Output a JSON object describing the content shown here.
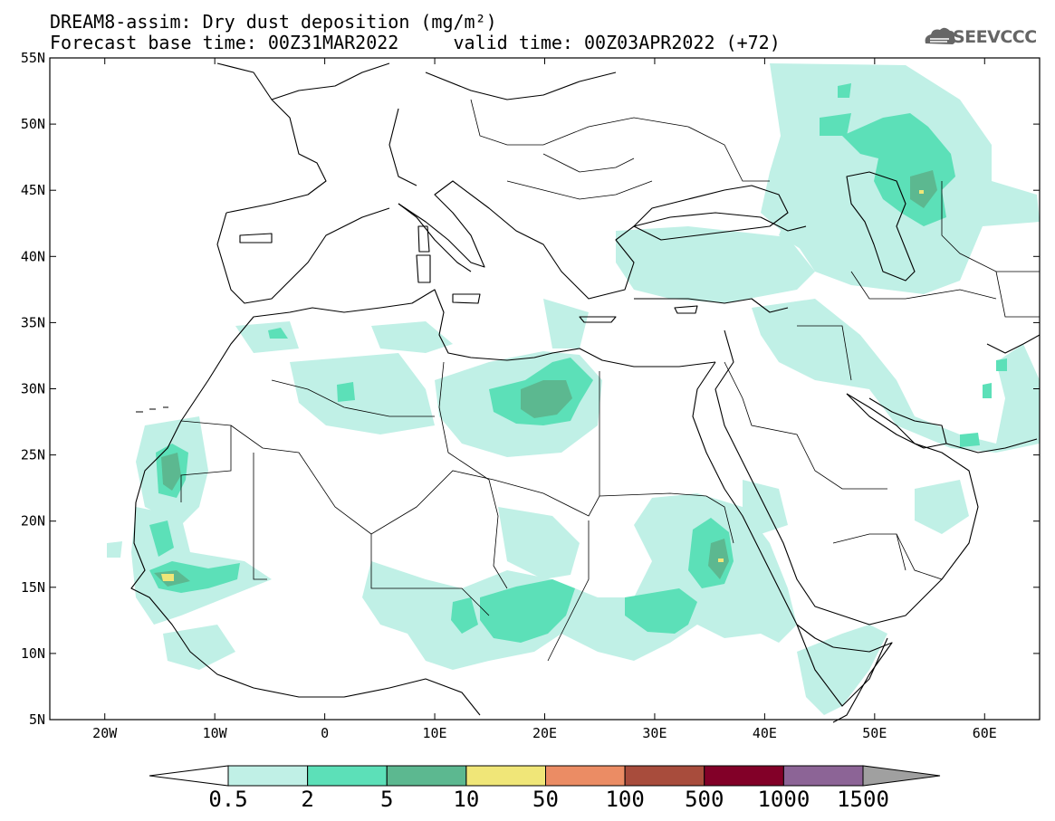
{
  "title": {
    "line1": "DREAM8-assim: Dry dust deposition (mg/m²)",
    "line2": "Forecast base time: 00Z31MAR2022     valid time: 00Z03APR2022 (+72)"
  },
  "logo": {
    "text": "SEEVCCC",
    "icon": "cloud-icon"
  },
  "map": {
    "lon_range": [
      -25,
      65
    ],
    "lat_range": [
      5,
      55
    ],
    "lat_labels": [
      "55N",
      "50N",
      "45N",
      "40N",
      "35N",
      "30N",
      "25N",
      "20N",
      "15N",
      "10N",
      "5N"
    ],
    "lon_labels": [
      "20W",
      "10W",
      "0",
      "10E",
      "20E",
      "30E",
      "40E",
      "50E",
      "60E"
    ],
    "lat_values": [
      55,
      50,
      45,
      40,
      35,
      30,
      25,
      20,
      15,
      10,
      5
    ],
    "lon_values": [
      -20,
      -10,
      0,
      10,
      20,
      30,
      40,
      50,
      60
    ]
  },
  "colorbar": {
    "colors": [
      "#c0f0e6",
      "#5ce0b8",
      "#5cb890",
      "#f0e678",
      "#eb8c64",
      "#a84c3c",
      "#820028",
      "#8c6496",
      "#a0a0a0"
    ],
    "ticks": [
      "0.5",
      "2",
      "5",
      "10",
      "50",
      "100",
      "500",
      "1000",
      "1500"
    ]
  }
}
